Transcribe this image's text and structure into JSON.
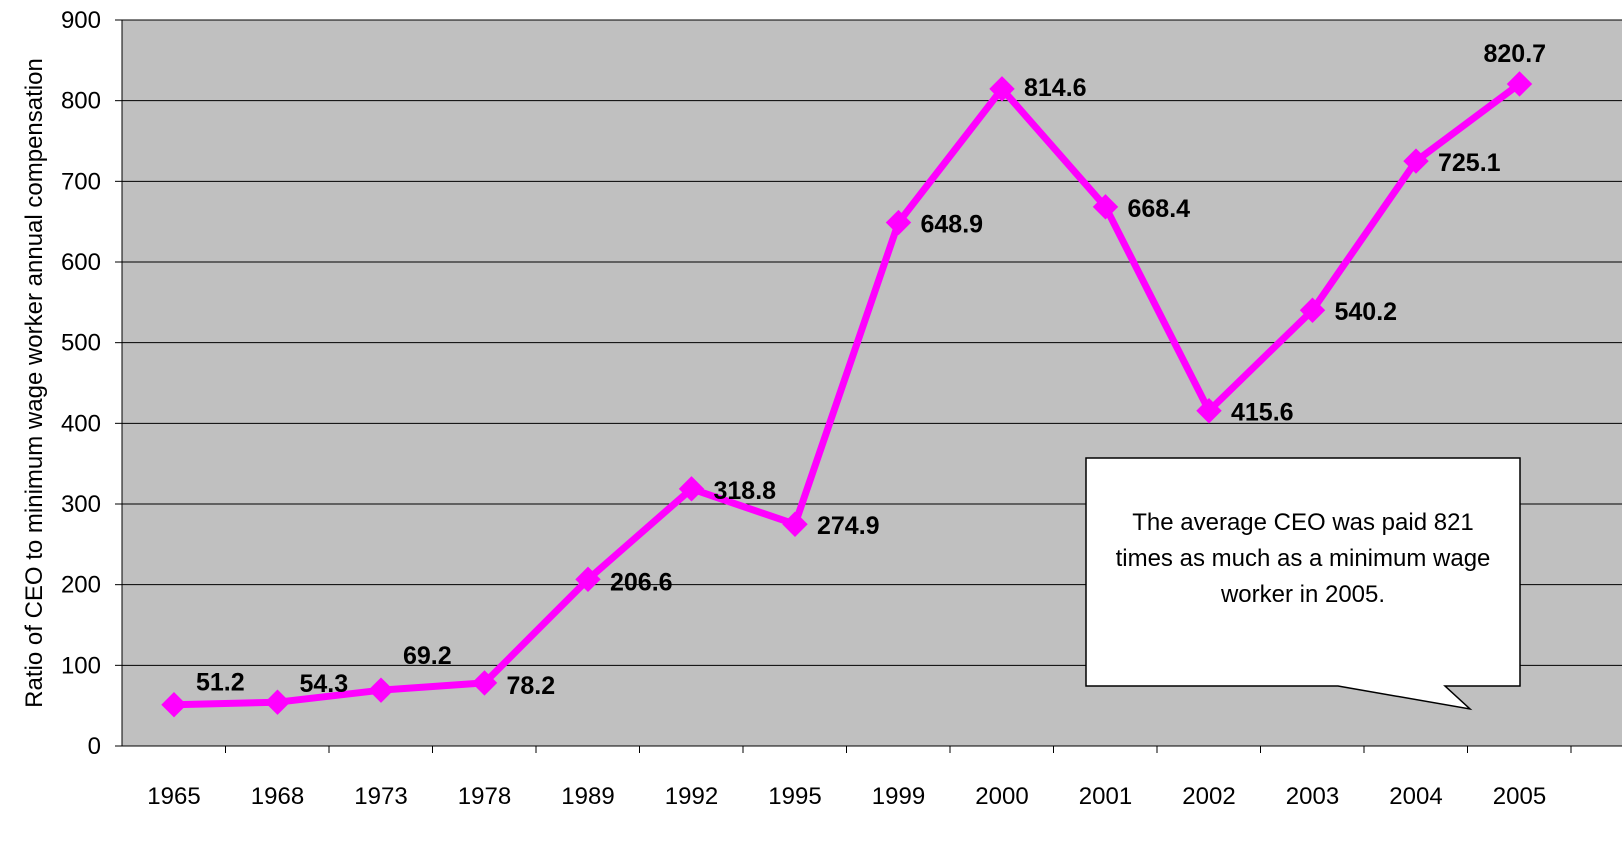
{
  "chart_data": {
    "type": "line",
    "title": "",
    "xlabel": "",
    "ylabel": "Ratio of CEO to minimum wage worker annual compensation",
    "categories": [
      "1965",
      "1968",
      "1973",
      "1978",
      "1989",
      "1992",
      "1995",
      "1999",
      "2000",
      "2001",
      "2002",
      "2003",
      "2004",
      "2005"
    ],
    "series": [
      {
        "values": [
          51.2,
          54.3,
          69.2,
          78.2,
          206.6,
          318.8,
          274.9,
          648.9,
          814.6,
          668.4,
          415.6,
          540.2,
          725.1,
          820.7
        ],
        "labels": [
          "51.2",
          "54.3",
          "69.2",
          "78.2",
          "206.6",
          "318.8",
          "274.9",
          "648.9",
          "814.6",
          "668.4",
          "415.6",
          "540.2",
          "725.1",
          "820.7"
        ],
        "color": "#ff00ff",
        "marker": "diamond"
      }
    ],
    "ylim": [
      0,
      900
    ],
    "yticks": [
      "0",
      "100",
      "200",
      "300",
      "400",
      "500",
      "600",
      "700",
      "800",
      "900"
    ],
    "grid": true,
    "legend": "none",
    "plot_background": "#c0c0c0",
    "annotation": {
      "text_lines": [
        "The average CEO was paid 821",
        "times as much as a minimum wage",
        "worker in 2005."
      ]
    }
  }
}
